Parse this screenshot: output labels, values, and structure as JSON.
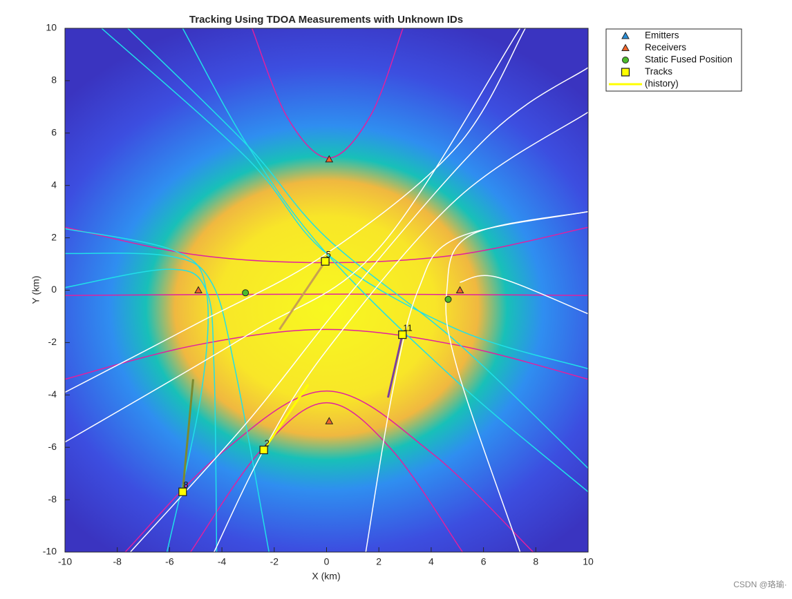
{
  "chart_data": {
    "type": "scatter",
    "title": "Tracking Using TDOA Measurements with Unknown IDs",
    "xlabel": "X (km)",
    "ylabel": "Y (km)",
    "xlim": [
      -10,
      10
    ],
    "ylim": [
      -10,
      10
    ],
    "xticks": [
      -10,
      -8,
      -6,
      -4,
      -2,
      0,
      2,
      4,
      6,
      8,
      10
    ],
    "yticks": [
      -10,
      -8,
      -6,
      -4,
      -2,
      0,
      2,
      4,
      6,
      8,
      10
    ],
    "series": [
      {
        "name": "Emitters",
        "marker": "triangle",
        "color": "#2a8fd8",
        "x": [],
        "y": []
      },
      {
        "name": "Receivers",
        "marker": "triangle",
        "color": "#f0642a",
        "x": [
          0.1,
          -4.9,
          5.1,
          0.1
        ],
        "y": [
          5.0,
          0.0,
          0.0,
          -5.0
        ]
      },
      {
        "name": "Static Fused Position",
        "marker": "circle",
        "color": "#4cbb2c",
        "x": [
          -3.1,
          4.65
        ],
        "y": [
          -0.1,
          -0.35
        ]
      },
      {
        "name": "Tracks",
        "marker": "square",
        "color": "#ffff00",
        "x": [
          -0.05,
          2.9,
          -2.4,
          -5.5
        ],
        "y": [
          1.1,
          -1.7,
          -6.1,
          -7.7
        ],
        "labels": [
          "5",
          "11",
          "2",
          "8"
        ]
      },
      {
        "name": "(history)",
        "marker": "line",
        "color": "#ffff00",
        "x": [
          -0.05,
          -1.8,
          null,
          2.9,
          2.35,
          null,
          -2.4,
          -0.7,
          null,
          -5.5,
          -5.1
        ],
        "y": [
          1.1,
          -1.5,
          null,
          -1.7,
          -4.1,
          null,
          -6.1,
          -3.6,
          null,
          -7.7,
          -3.4
        ],
        "piece_colors": [
          "#c8a050",
          "#7a3fa0",
          "#ffff00",
          "#7a8a30"
        ]
      }
    ],
    "curves": [
      {
        "color": "#e020a0",
        "x": [
          -2.85,
          -1.5,
          0.1,
          1.7,
          2.92
        ],
        "y": [
          10,
          6.6,
          5.05,
          6.7,
          10
        ]
      },
      {
        "color": "#e020a0",
        "x": [
          -10,
          -5,
          0,
          5,
          10
        ],
        "y": [
          2.4,
          1.35,
          1.05,
          1.35,
          2.4
        ]
      },
      {
        "color": "#e020a0",
        "x": [
          -10,
          0,
          10
        ],
        "y": [
          -0.2,
          -0.15,
          -0.2
        ]
      },
      {
        "color": "#e020a0",
        "x": [
          -10,
          -5,
          0,
          5,
          10
        ],
        "y": [
          -3.4,
          -2.1,
          -1.5,
          -2.1,
          -3.4
        ]
      },
      {
        "color": "#e020a0",
        "x": [
          -7.7,
          -4,
          0,
          4,
          7.9
        ],
        "y": [
          -10,
          -6.2,
          -3.85,
          -6.2,
          -10
        ]
      },
      {
        "color": "#e020a0",
        "x": [
          -5.2,
          -2.5,
          0,
          2.5,
          5.2
        ],
        "y": [
          -10,
          -6.1,
          -4.3,
          -6.1,
          -10
        ]
      },
      {
        "color": "#20e0e8",
        "x": [
          -8.6,
          -3,
          0,
          5,
          10
        ],
        "y": [
          10,
          5,
          1.4,
          -1.5,
          -3.0
        ]
      },
      {
        "color": "#20e0e8",
        "x": [
          -7.6,
          -3,
          0,
          5,
          10
        ],
        "y": [
          10,
          5.5,
          2.0,
          -2.0,
          -6.8
        ]
      },
      {
        "color": "#20e0e8",
        "x": [
          -5.5,
          -3,
          0,
          5,
          10
        ],
        "y": [
          10,
          5.5,
          1.4,
          -3.5,
          -7.7
        ]
      },
      {
        "color": "#20e0e8",
        "x": [
          -10,
          -5.8,
          -4.6,
          -4.8,
          -6.1
        ],
        "y": [
          2.35,
          1.5,
          0,
          -4,
          -10
        ]
      },
      {
        "color": "#20e0e8",
        "x": [
          -10,
          -6,
          -4.4,
          -3.5,
          -2.2
        ],
        "y": [
          1.4,
          1.3,
          0.3,
          -3,
          -10
        ]
      },
      {
        "color": "#20e0e8",
        "x": [
          -10,
          -6,
          -4.6,
          -4.3,
          -4.2
        ],
        "y": [
          0.1,
          0.8,
          0,
          -3,
          -10
        ]
      },
      {
        "color": "#ffffff",
        "x": [
          -10,
          -5,
          0,
          5,
          7.6
        ],
        "y": [
          -3.9,
          -1.3,
          1.4,
          5.5,
          10
        ]
      },
      {
        "color": "#ffffff",
        "x": [
          -10,
          -3,
          2,
          7.4
        ],
        "y": [
          -5.8,
          -1.7,
          1.6,
          10
        ]
      },
      {
        "color": "#ffffff",
        "x": [
          -7.5,
          -3,
          1,
          6.3,
          10
        ],
        "y": [
          -10,
          -5,
          0,
          6,
          8.5
        ]
      },
      {
        "color": "#ffffff",
        "x": [
          -4.3,
          -2.4,
          0,
          5,
          10
        ],
        "y": [
          -10,
          -6.1,
          -2.3,
          3.5,
          6.8
        ]
      },
      {
        "color": "#ffffff",
        "x": [
          10,
          5.5,
          4.6,
          5,
          7.4
        ],
        "y": [
          3.0,
          2.1,
          0,
          -3,
          -10
        ]
      },
      {
        "color": "#ffffff",
        "x": [
          1.5,
          2.5,
          3.5,
          5,
          10
        ],
        "y": [
          -10,
          -4,
          0,
          2,
          3
        ]
      },
      {
        "color": "#ffffff",
        "x": [
          5.1,
          6.5,
          10
        ],
        "y": [
          0.3,
          0.5,
          -0.9
        ]
      }
    ]
  },
  "watermark": "CSDN @珞瑜·"
}
